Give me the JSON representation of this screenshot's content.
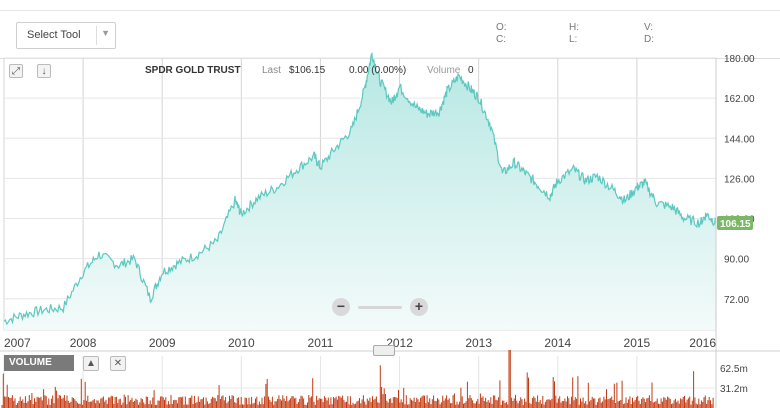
{
  "toolbar": {
    "select_tool_label": "Select Tool",
    "ohlc": {
      "o": "O:",
      "c": "C:",
      "h": "H:",
      "l": "L:",
      "v": "V:",
      "d": "D:"
    }
  },
  "header": {
    "symbol": "SPDR GOLD TRUST",
    "last_label": "Last",
    "last_value": "$106.15",
    "change": "0.00 (0.00%)",
    "volume_label": "Volume",
    "volume_value": "0"
  },
  "volume_panel": {
    "label": "VOLUME",
    "ticks": [
      "62.5m",
      "31.2m"
    ]
  },
  "colors": {
    "line": "#5cc8c0",
    "area_top": "#b6e7e3",
    "area_bottom": "#f3fbfa",
    "grid": "#e6e6e6",
    "volume": "#c23a12",
    "price_badge": "#7ab866"
  },
  "chart_data": {
    "type": "area",
    "title": "SPDR GOLD TRUST",
    "xlabel": "",
    "ylabel": "",
    "x_ticks": [
      "2007",
      "2008",
      "2009",
      "2010",
      "2011",
      "2012",
      "2013",
      "2014",
      "2015",
      "2016"
    ],
    "y_ticks": [
      "180.00",
      "162.00",
      "144.00",
      "126.00",
      "108.00",
      "90.00",
      "72.00"
    ],
    "ylim": [
      58,
      180
    ],
    "xlim": [
      2007.0,
      2016.0
    ],
    "last_price_label": "106.15",
    "grid": true,
    "series": [
      {
        "x": [
          2007.0,
          2007.25,
          2007.5,
          2007.75,
          2008.0,
          2008.2,
          2008.45,
          2008.65,
          2008.85,
          2009.0,
          2009.2,
          2009.45,
          2009.7,
          2009.92,
          2010.0,
          2010.2,
          2010.45,
          2010.7,
          2010.92,
          2011.0,
          2011.2,
          2011.4,
          2011.55,
          2011.65,
          2011.75,
          2011.9,
          2012.0,
          2012.2,
          2012.35,
          2012.5,
          2012.6,
          2012.75,
          2012.9,
          2013.0,
          2013.15,
          2013.3,
          2013.45,
          2013.6,
          2013.75,
          2013.9,
          2014.0,
          2014.2,
          2014.35,
          2014.5,
          2014.7,
          2014.85,
          2015.0,
          2015.1,
          2015.25,
          2015.45,
          2015.6,
          2015.8,
          2015.88,
          2016.0
        ],
        "y": [
          62,
          65,
          67,
          68,
          84,
          92,
          87,
          90,
          72,
          84,
          88,
          92,
          98,
          116,
          110,
          117,
          122,
          130,
          136,
          131,
          140,
          148,
          165,
          182,
          170,
          160,
          167,
          158,
          155,
          156,
          165,
          172,
          166,
          162,
          150,
          128,
          133,
          128,
          123,
          118,
          125,
          130,
          125,
          127,
          121,
          116,
          122,
          124,
          115,
          113,
          108,
          106,
          110,
          106
        ]
      }
    ]
  }
}
